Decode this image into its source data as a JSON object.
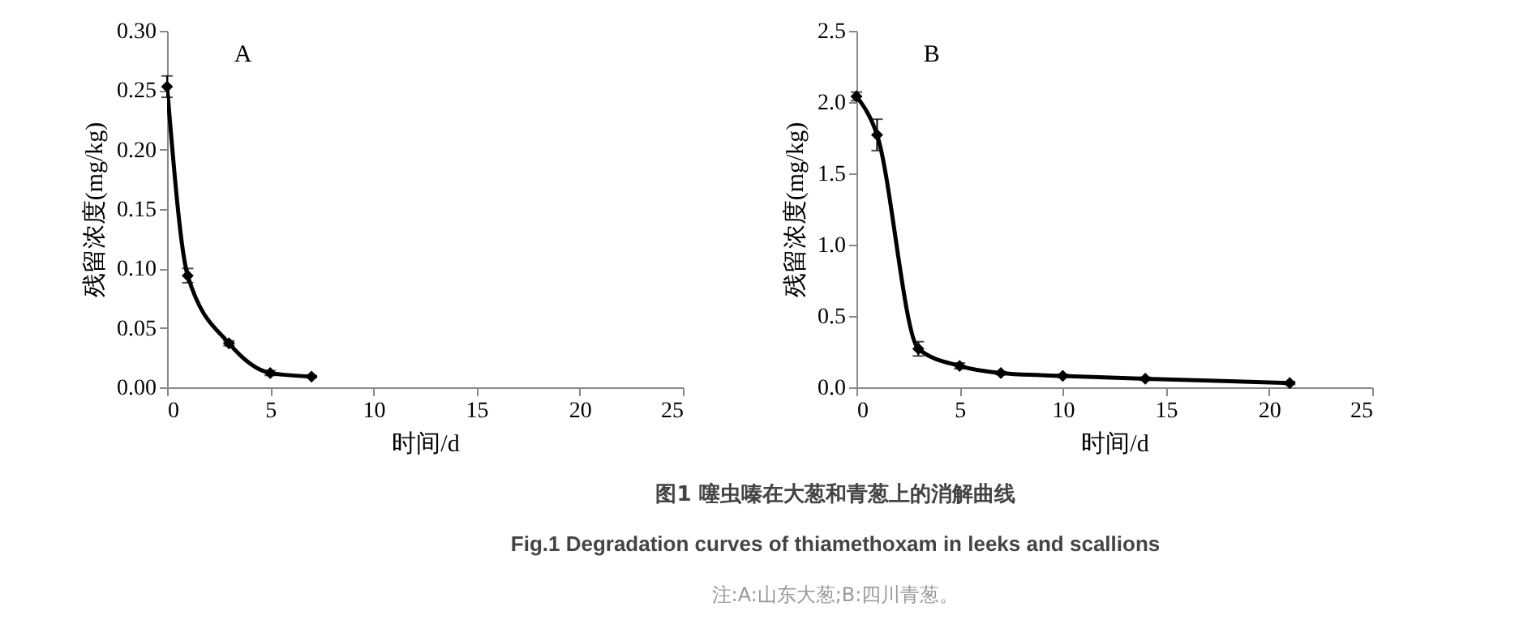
{
  "chart_data": [
    {
      "type": "line",
      "xlabel": "时间/d",
      "ylabel": "残留浓度(mg/kg)",
      "annotations": [
        "A",
        "图1 噻虫嗪在大葱和青葱上的消解曲线",
        "Fig.1 Degradation curves of thiamethoxam in leeks and scallions",
        "注:A:山东大葱;B:四川青葱。"
      ],
      "x": [
        0,
        1,
        3,
        5,
        7
      ],
      "series": [
        {
          "color": "#000000",
          "values": [
            0.253,
            0.094,
            0.037,
            0.012,
            0.009
          ],
          "errors": [
            0.009,
            0.006,
            0.002,
            0.002,
            0.001
          ]
        }
      ],
      "xlim": [
        0,
        25
      ],
      "xticks": [
        0,
        5,
        10,
        15,
        20,
        25
      ],
      "ylim": [
        0,
        0.3
      ],
      "yticks": [
        {
          "value": 0,
          "label": "0.00"
        },
        {
          "value": 0.05,
          "label": "0.05"
        },
        {
          "value": 0.1,
          "label": "0.10"
        },
        {
          "value": 0.15,
          "label": "0.15"
        },
        {
          "value": 0.2,
          "label": "0.20"
        },
        {
          "value": 0.25,
          "label": "0.25"
        },
        {
          "value": 0.3,
          "label": "0.30"
        }
      ],
      "marker": "diamond",
      "line_style": "solid",
      "grid": false
    },
    {
      "type": "line",
      "xlabel": "时间/d",
      "ylabel": "残留浓度(mg/kg)",
      "annotations": [
        "B"
      ],
      "x": [
        0,
        1,
        3,
        5,
        7,
        10,
        14,
        21
      ],
      "series": [
        {
          "color": "#000000",
          "values": [
            2.04,
            1.77,
            0.27,
            0.15,
            0.1,
            0.08,
            0.06,
            0.03
          ],
          "errors": [
            0.03,
            0.11,
            0.05,
            0.02,
            0.01,
            0.01,
            0.01,
            0.01
          ]
        }
      ],
      "xlim": [
        0,
        25
      ],
      "xticks": [
        0,
        5,
        10,
        15,
        20,
        25
      ],
      "ylim": [
        0,
        2.5
      ],
      "yticks": [
        {
          "value": 0,
          "label": "0.0"
        },
        {
          "value": 0.5,
          "label": "0.5"
        },
        {
          "value": 1,
          "label": "1.0"
        },
        {
          "value": 1.5,
          "label": "1.5"
        },
        {
          "value": 2,
          "label": "2.0"
        },
        {
          "value": 2.5,
          "label": "2.5"
        }
      ],
      "marker": "diamond",
      "line_style": "solid",
      "grid": false
    }
  ]
}
